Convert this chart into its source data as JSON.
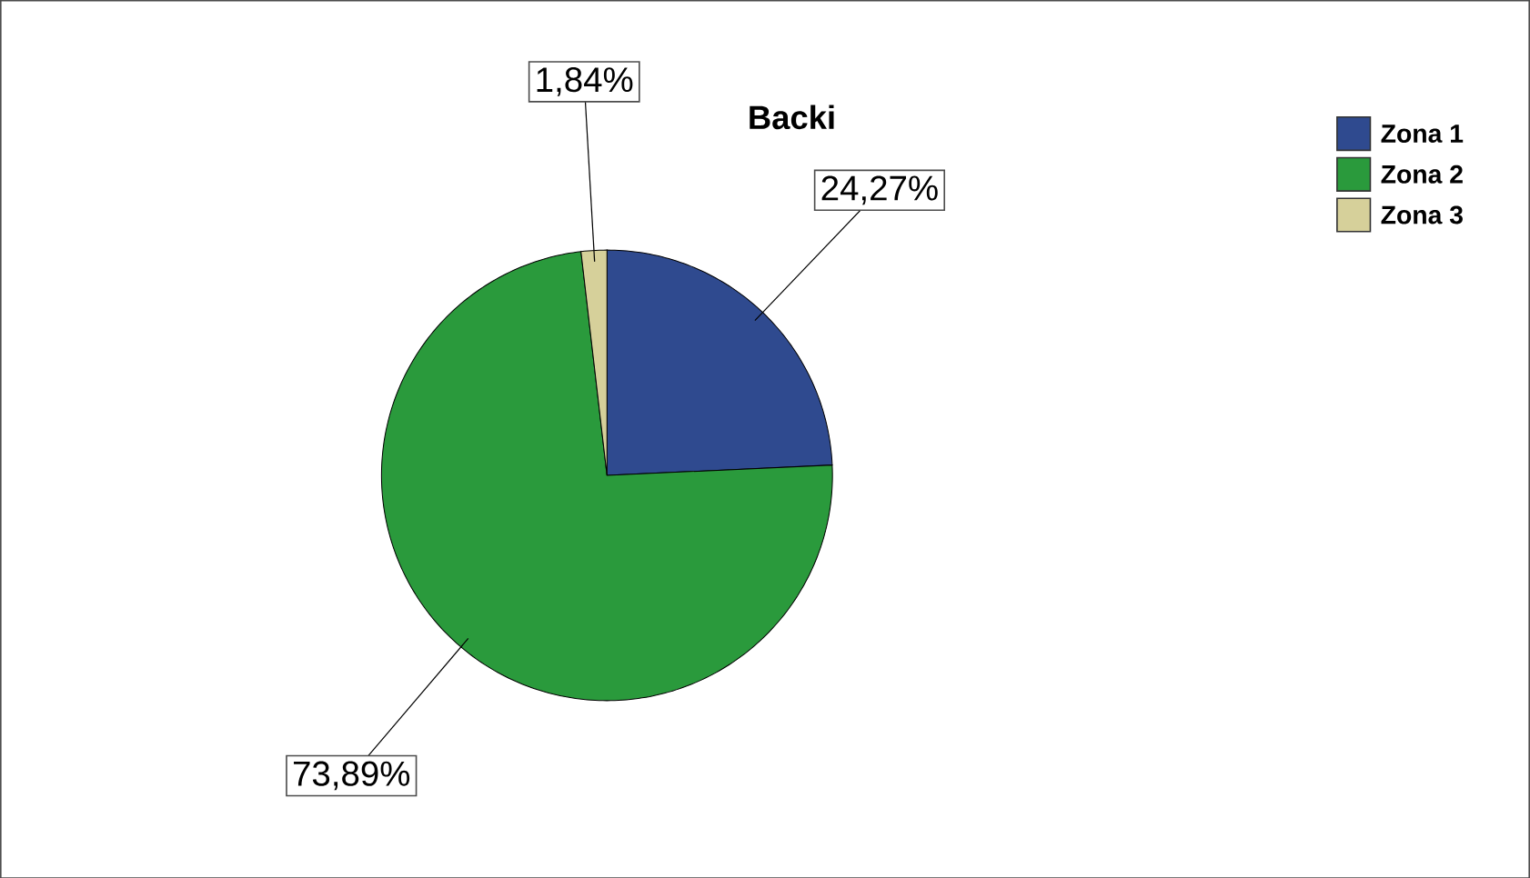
{
  "chart_data": {
    "type": "pie",
    "title": "Backi",
    "categories": [
      "Zona 1",
      "Zona 2",
      "Zona 3"
    ],
    "values": [
      24.27,
      73.89,
      1.84
    ],
    "colors": [
      "#2f4a8f",
      "#2a9a3c",
      "#d6d09a"
    ],
    "value_labels": [
      "24,27%",
      "73,89%",
      "1,84%"
    ],
    "legend": "top right"
  }
}
